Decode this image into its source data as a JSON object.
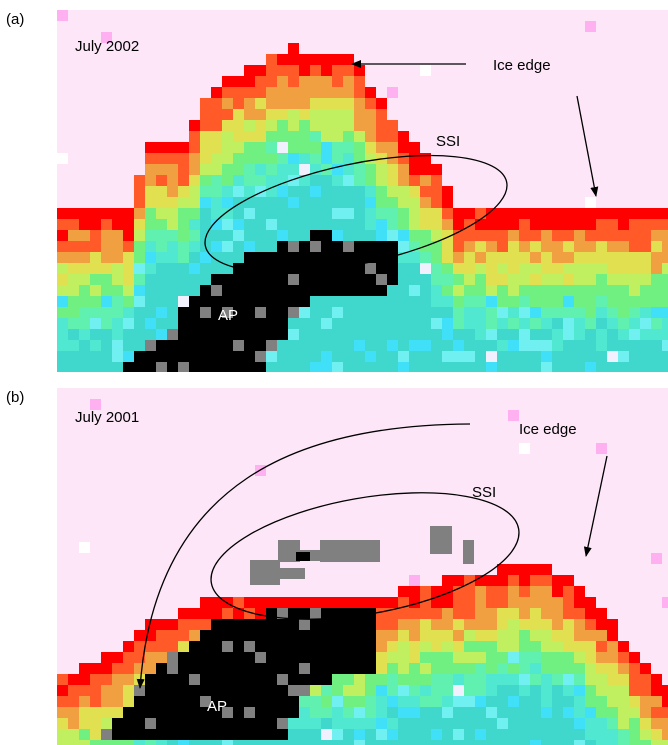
{
  "panels": [
    {
      "label": "(a)",
      "date": "July 2002",
      "ice_edge": "Ice edge",
      "ssi": "SSI",
      "ap": "AP"
    },
    {
      "label": "(b)",
      "date": "July 2001",
      "ice_edge": "Ice edge",
      "ssi": "SSI",
      "ap": "AP"
    }
  ]
}
